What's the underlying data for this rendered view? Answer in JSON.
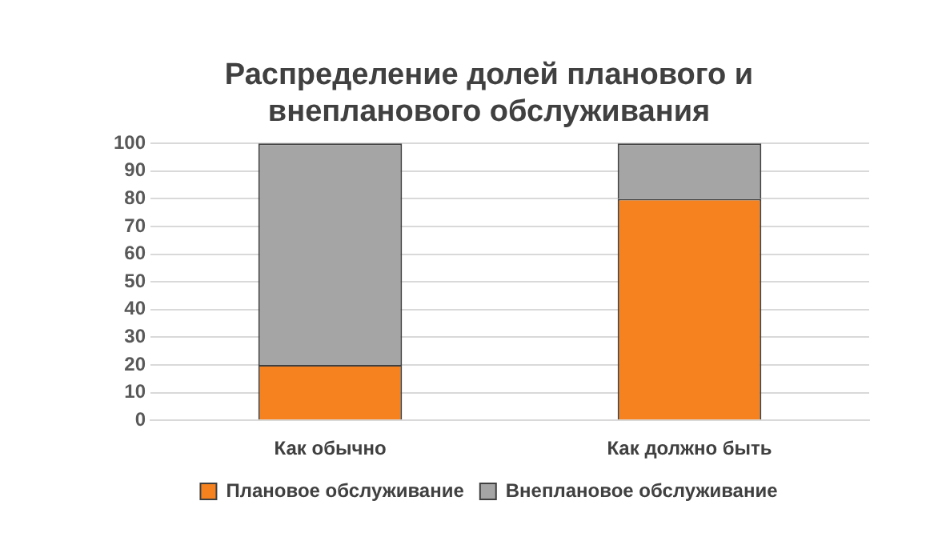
{
  "chart_data": {
    "type": "bar",
    "title": "Распределение долей планового и внепланового обслуживания",
    "categories": [
      "Как обычно",
      "Как должно быть"
    ],
    "stacked": true,
    "series": [
      {
        "name": "Плановое обслуживание",
        "color": "#f5821f",
        "values": [
          20,
          80
        ]
      },
      {
        "name": "Внеплановое обслуживание",
        "color": "#a5a5a5",
        "values": [
          80,
          20
        ]
      }
    ],
    "ylim": [
      0,
      100
    ],
    "yticks": [
      0,
      10,
      20,
      30,
      40,
      50,
      60,
      70,
      80,
      90,
      100
    ],
    "grid": "y",
    "legend": "bottom"
  }
}
